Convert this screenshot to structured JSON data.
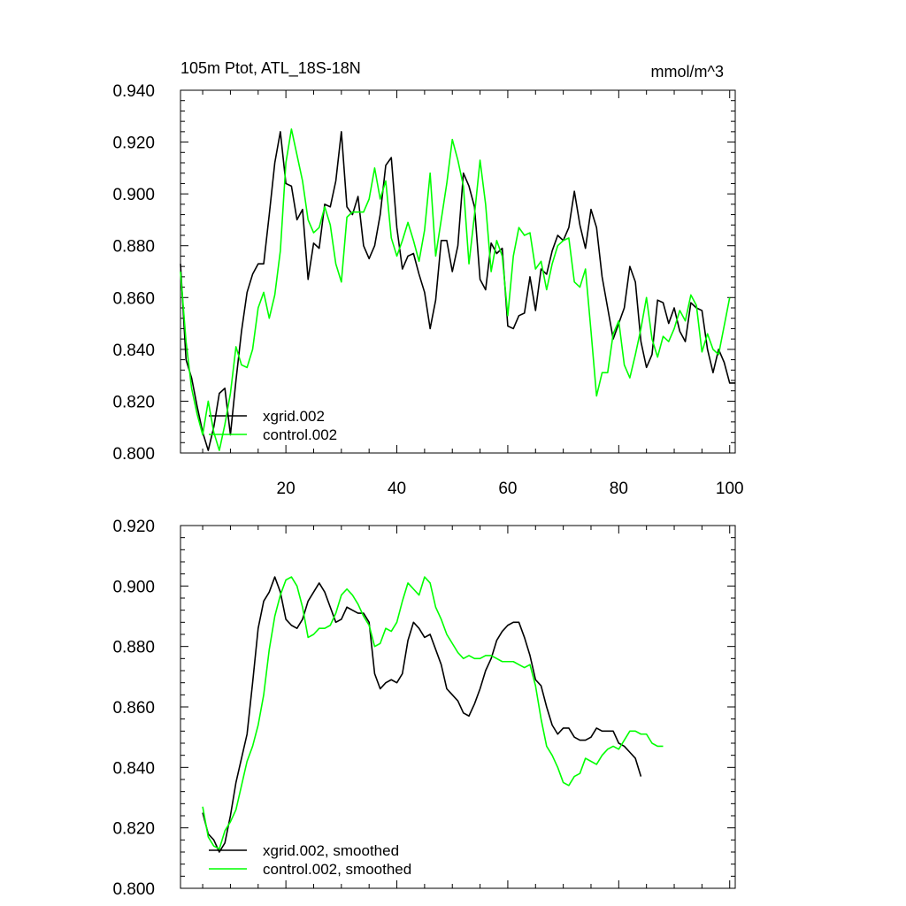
{
  "chart_data": [
    {
      "type": "line",
      "title": "105m Ptot, ATL_18S-18N",
      "units": "mmol/m^3",
      "xlim": [
        1,
        101
      ],
      "ylim": [
        0.8,
        0.94
      ],
      "x_ticks": [
        20,
        40,
        60,
        80,
        100
      ],
      "x_tick_labels": [
        "20",
        "40",
        "60",
        "80",
        "100"
      ],
      "y_ticks": [
        0.8,
        0.82,
        0.84,
        0.86,
        0.88,
        0.9,
        0.92,
        0.94
      ],
      "y_tick_labels": [
        "0.800",
        "0.820",
        "0.840",
        "0.860",
        "0.880",
        "0.900",
        "0.920",
        "0.940"
      ],
      "legend_position": "bottom-left",
      "series": [
        {
          "name": "xgrid.002",
          "color": "#000000",
          "x_start": 1,
          "values": [
            0.873,
            0.836,
            0.829,
            0.818,
            0.808,
            0.801,
            0.81,
            0.823,
            0.825,
            0.807,
            0.828,
            0.847,
            0.862,
            0.869,
            0.873,
            0.873,
            0.892,
            0.912,
            0.924,
            0.904,
            0.903,
            0.89,
            0.894,
            0.867,
            0.881,
            0.879,
            0.896,
            0.895,
            0.905,
            0.924,
            0.895,
            0.892,
            0.899,
            0.88,
            0.875,
            0.88,
            0.892,
            0.911,
            0.914,
            0.887,
            0.871,
            0.876,
            0.877,
            0.869,
            0.862,
            0.848,
            0.859,
            0.882,
            0.882,
            0.87,
            0.88,
            0.908,
            0.903,
            0.895,
            0.867,
            0.863,
            0.881,
            0.877,
            0.879,
            0.849,
            0.848,
            0.853,
            0.854,
            0.868,
            0.855,
            0.871,
            0.869,
            0.878,
            0.884,
            0.882,
            0.887,
            0.901,
            0.888,
            0.879,
            0.894,
            0.887,
            0.868,
            0.856,
            0.844,
            0.85,
            0.856,
            0.872,
            0.866,
            0.843,
            0.833,
            0.838,
            0.859,
            0.858,
            0.85,
            0.856,
            0.847,
            0.843,
            0.858,
            0.856,
            0.855,
            0.84,
            0.831,
            0.84,
            0.835,
            0.827,
            0.827
          ]
        },
        {
          "name": "control.002",
          "color": "#00ff00",
          "x_start": 1,
          "values": [
            0.87,
            0.843,
            0.825,
            0.815,
            0.807,
            0.82,
            0.808,
            0.801,
            0.811,
            0.823,
            0.841,
            0.834,
            0.833,
            0.84,
            0.856,
            0.862,
            0.852,
            0.861,
            0.878,
            0.912,
            0.925,
            0.915,
            0.905,
            0.89,
            0.885,
            0.887,
            0.895,
            0.888,
            0.873,
            0.866,
            0.891,
            0.893,
            0.893,
            0.893,
            0.898,
            0.91,
            0.898,
            0.905,
            0.883,
            0.876,
            0.882,
            0.889,
            0.882,
            0.874,
            0.886,
            0.908,
            0.876,
            0.89,
            0.904,
            0.921,
            0.913,
            0.903,
            0.873,
            0.892,
            0.913,
            0.896,
            0.87,
            0.882,
            0.876,
            0.853,
            0.876,
            0.887,
            0.884,
            0.885,
            0.871,
            0.874,
            0.863,
            0.873,
            0.88,
            0.882,
            0.883,
            0.866,
            0.864,
            0.871,
            0.847,
            0.822,
            0.831,
            0.831,
            0.846,
            0.851,
            0.834,
            0.829,
            0.838,
            0.848,
            0.86,
            0.844,
            0.837,
            0.845,
            0.843,
            0.848,
            0.855,
            0.851,
            0.861,
            0.857,
            0.839,
            0.846,
            0.84,
            0.838,
            0.849,
            0.86
          ]
        }
      ]
    },
    {
      "type": "line",
      "title": "",
      "xlim": [
        1,
        101
      ],
      "ylim": [
        0.8,
        0.92
      ],
      "x_ticks": [
        20,
        40,
        60,
        80,
        100
      ],
      "x_tick_labels": [],
      "y_ticks": [
        0.8,
        0.82,
        0.84,
        0.86,
        0.88,
        0.9,
        0.92
      ],
      "y_tick_labels": [
        "0.800",
        "0.820",
        "0.840",
        "0.860",
        "0.880",
        "0.900",
        "0.920"
      ],
      "legend_position": "bottom-left",
      "series": [
        {
          "name": "xgrid.002, smoothed",
          "color": "#000000",
          "x_start": 5,
          "values": [
            0.825,
            0.818,
            0.816,
            0.812,
            0.815,
            0.824,
            0.835,
            0.843,
            0.851,
            0.868,
            0.886,
            0.895,
            0.898,
            0.903,
            0.898,
            0.889,
            0.887,
            0.886,
            0.889,
            0.895,
            0.898,
            0.901,
            0.898,
            0.893,
            0.888,
            0.889,
            0.893,
            0.892,
            0.891,
            0.891,
            0.888,
            0.871,
            0.866,
            0.868,
            0.869,
            0.868,
            0.871,
            0.882,
            0.888,
            0.886,
            0.883,
            0.884,
            0.879,
            0.874,
            0.866,
            0.864,
            0.862,
            0.858,
            0.857,
            0.861,
            0.866,
            0.872,
            0.876,
            0.882,
            0.885,
            0.887,
            0.888,
            0.888,
            0.883,
            0.877,
            0.869,
            0.867,
            0.86,
            0.854,
            0.851,
            0.853,
            0.853,
            0.85,
            0.849,
            0.849,
            0.85,
            0.853,
            0.852,
            0.852,
            0.852,
            0.848,
            0.847,
            0.845,
            0.843,
            0.837
          ]
        },
        {
          "name": "control.002, smoothed",
          "color": "#00ff00",
          "x_start": 5,
          "values": [
            0.827,
            0.817,
            0.814,
            0.813,
            0.819,
            0.822,
            0.826,
            0.834,
            0.842,
            0.847,
            0.854,
            0.864,
            0.879,
            0.89,
            0.897,
            0.902,
            0.903,
            0.9,
            0.893,
            0.883,
            0.884,
            0.886,
            0.886,
            0.887,
            0.891,
            0.897,
            0.899,
            0.897,
            0.894,
            0.89,
            0.887,
            0.88,
            0.881,
            0.886,
            0.885,
            0.888,
            0.895,
            0.901,
            0.899,
            0.897,
            0.903,
            0.901,
            0.893,
            0.889,
            0.884,
            0.881,
            0.878,
            0.876,
            0.877,
            0.876,
            0.876,
            0.877,
            0.877,
            0.876,
            0.875,
            0.875,
            0.875,
            0.874,
            0.873,
            0.874,
            0.867,
            0.856,
            0.847,
            0.844,
            0.84,
            0.835,
            0.834,
            0.837,
            0.838,
            0.843,
            0.842,
            0.841,
            0.844,
            0.846,
            0.847,
            0.846,
            0.849,
            0.852,
            0.852,
            0.851,
            0.851,
            0.848,
            0.847,
            0.847
          ]
        }
      ]
    }
  ]
}
